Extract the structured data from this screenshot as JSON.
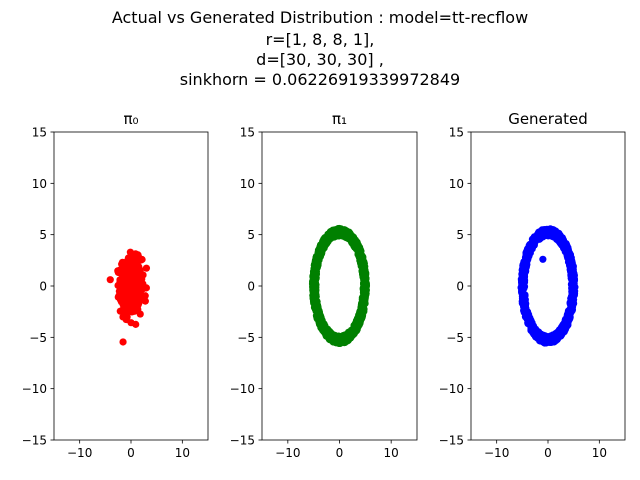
{
  "figure": {
    "title_lines": [
      "Actual vs Generated Distribution : model=tt-recflow",
      "r=[1, 8, 8, 1],",
      "d=[30, 30, 30] ,",
      "sinkhorn = 0.06226919339972849"
    ]
  },
  "colors": {
    "pi0": "#ff0000",
    "pi1": "#008000",
    "generated": "#0000ff"
  },
  "chart_data": [
    {
      "type": "scatter",
      "title": "π₀",
      "xlim": [
        -15,
        15
      ],
      "ylim": [
        -15,
        15
      ],
      "xticks": [
        -10,
        0,
        10
      ],
      "yticks": [
        -15,
        -10,
        -5,
        0,
        5,
        10,
        15
      ],
      "series": [
        {
          "color": "#ff0000",
          "distribution": "gaussian",
          "center": [
            0,
            0
          ],
          "std": [
            1.0,
            1.3
          ],
          "count": 600
        }
      ]
    },
    {
      "type": "scatter",
      "title": "π₁",
      "xlim": [
        -15,
        15
      ],
      "ylim": [
        -15,
        15
      ],
      "xticks": [
        -10,
        0,
        10
      ],
      "yticks": [
        -15,
        -10,
        -5,
        0,
        5,
        10,
        15
      ],
      "series": [
        {
          "color": "#008000",
          "distribution": "ring",
          "center": [
            0,
            0
          ],
          "radius": [
            5,
            5
          ],
          "count": 1200
        }
      ]
    },
    {
      "type": "scatter",
      "title": "Generated",
      "xlim": [
        -15,
        15
      ],
      "ylim": [
        -15,
        15
      ],
      "xticks": [
        -10,
        0,
        10
      ],
      "yticks": [
        -15,
        -10,
        -5,
        0,
        5,
        10,
        15
      ],
      "series": [
        {
          "color": "#0000ff",
          "distribution": "ring",
          "center": [
            0,
            0
          ],
          "radius": [
            5,
            5
          ],
          "count": 1000,
          "extra_points": [
            [
              -1,
              2.6
            ]
          ]
        }
      ]
    }
  ]
}
